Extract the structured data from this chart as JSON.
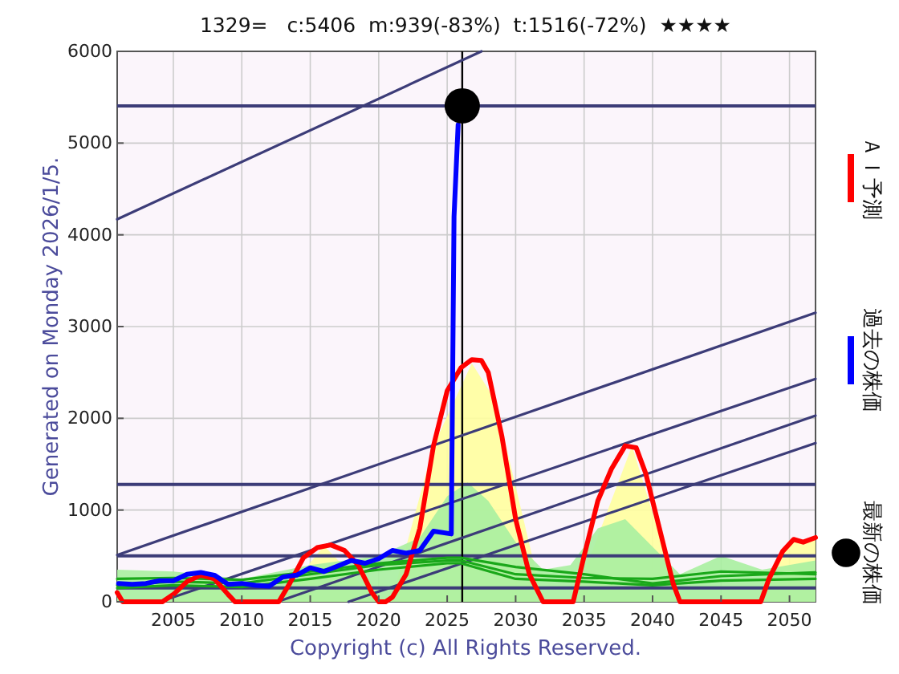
{
  "chart_data": {
    "type": "line",
    "title": "1329=   c:5406  m:939(-83%)  t:1516(-72%)  ★★★★",
    "ylabel": "Generated on Monday 2026/1/5.",
    "annotations": [
      "Copyright (c) All Rights Reserved."
    ],
    "xlim": [
      2000.9,
      2051.9
    ],
    "ylim": [
      0,
      6000
    ],
    "xticks": [
      2005,
      2010,
      2015,
      2020,
      2025,
      2030,
      2035,
      2040,
      2045,
      2050
    ],
    "yticks": [
      0,
      1000,
      2000,
      3000,
      4000,
      5000,
      6000
    ],
    "grid": true,
    "legend": "right",
    "ref_lines": [
      {
        "axis": "y",
        "value": 5406,
        "color": "#3c3c78"
      },
      {
        "axis": "y",
        "value": 1280,
        "color": "#3c3c78"
      },
      {
        "axis": "y",
        "value": 500,
        "color": "#3c3c78"
      },
      {
        "axis": "y",
        "value": 150,
        "color": "#3c3c78"
      },
      {
        "axis": "x",
        "value": 2026.1,
        "color": "#000000"
      }
    ],
    "series": [
      {
        "type": "area",
        "color": "#ffff9e",
        "x": [
          2000.9,
          2001.3,
          2004.2,
          2006,
          2007.5,
          2009.5,
          2012.7,
          2016,
          2020,
          2021,
          2024,
          2026.8,
          2028.5,
          2032,
          2034.2,
          2038.5,
          2042,
          2047.9,
          2050,
          2051.9
        ],
        "values": [
          100,
          0,
          0,
          200,
          280,
          0,
          0,
          610,
          0,
          50,
          1700,
          2600,
          2200,
          0,
          0,
          1700,
          0,
          0,
          650,
          700
        ]
      },
      {
        "type": "area",
        "color": "#a8f0a0",
        "x": [
          2000.9,
          2005,
          2010,
          2015,
          2020,
          2023,
          2025,
          2026.5,
          2028,
          2030,
          2032,
          2034,
          2036,
          2038,
          2040,
          2042,
          2045,
          2048,
          2051.9
        ],
        "values": [
          350,
          330,
          250,
          400,
          500,
          700,
          1150,
          1300,
          1100,
          650,
          350,
          400,
          800,
          900,
          600,
          300,
          500,
          350,
          450
        ]
      },
      {
        "color": "#3c3c78",
        "x": [
          2000.9,
          2027.5
        ],
        "values": [
          4170,
          6000
        ]
      },
      {
        "color": "#3c3c78",
        "x": [
          2000.9,
          2051.9
        ],
        "values": [
          510,
          3150
        ]
      },
      {
        "color": "#3c3c78",
        "x": [
          2004,
          2051.9
        ],
        "values": [
          0,
          2430
        ]
      },
      {
        "color": "#3c3c78",
        "x": [
          2012.6,
          2051.9
        ],
        "values": [
          0,
          2030
        ]
      },
      {
        "color": "#3c3c78",
        "x": [
          2017.8,
          2051.9
        ],
        "values": [
          0,
          1730
        ]
      },
      {
        "color": "#1aa81a",
        "x": [
          2000.9,
          2005,
          2010,
          2015,
          2020,
          2025,
          2026,
          2030,
          2035,
          2040,
          2045,
          2051.9
        ],
        "values": [
          250,
          260,
          240,
          330,
          420,
          480,
          480,
          380,
          300,
          200,
          280,
          320
        ]
      },
      {
        "color": "#1aa81a",
        "x": [
          2000.9,
          2005,
          2010,
          2015,
          2020,
          2025,
          2026,
          2030,
          2035,
          2040,
          2045,
          2051.9
        ],
        "values": [
          180,
          220,
          200,
          300,
          400,
          450,
          450,
          300,
          260,
          250,
          330,
          300
        ]
      },
      {
        "color": "#1aa81a",
        "x": [
          2000.9,
          2005,
          2010,
          2015,
          2020,
          2025,
          2026,
          2030,
          2035,
          2040,
          2045,
          2051.9
        ],
        "values": [
          150,
          180,
          160,
          250,
          350,
          420,
          420,
          250,
          220,
          180,
          230,
          250
        ]
      },
      {
        "name": "ＡＩ予測",
        "color": "#ff0000",
        "x": [
          2000.9,
          2001.3,
          2004.2,
          2005,
          2006,
          2007,
          2008,
          2009,
          2009.5,
          2012.7,
          2013.5,
          2014.5,
          2015.5,
          2016.5,
          2017.5,
          2018.5,
          2019.5,
          2020,
          2020.5,
          2021,
          2022,
          2023,
          2024,
          2025,
          2026,
          2026.8,
          2027.5,
          2028,
          2029,
          2030,
          2031,
          2032,
          2034.2,
          2035,
          2036,
          2037,
          2038,
          2038.8,
          2039.5,
          2040.5,
          2041.5,
          2042,
          2047.9,
          2048.5,
          2049.5,
          2050.3,
          2051,
          2051.9
        ],
        "values": [
          100,
          0,
          0,
          80,
          220,
          290,
          250,
          80,
          0,
          0,
          200,
          480,
          590,
          620,
          560,
          400,
          100,
          0,
          0,
          50,
          300,
          800,
          1700,
          2300,
          2550,
          2640,
          2630,
          2500,
          1800,
          900,
          300,
          0,
          0,
          500,
          1100,
          1450,
          1700,
          1680,
          1400,
          800,
          200,
          0,
          0,
          250,
          550,
          680,
          650,
          700
        ]
      },
      {
        "name": "過去の株価",
        "color": "#0000ff",
        "x": [
          2001,
          2002,
          2003,
          2004,
          2005,
          2006,
          2007,
          2008,
          2009,
          2010,
          2011,
          2012,
          2013,
          2014,
          2015,
          2016,
          2017,
          2018,
          2019,
          2020,
          2021,
          2022,
          2023,
          2024,
          2025.3,
          2025.5,
          2025.8
        ],
        "values": [
          200,
          190,
          200,
          230,
          230,
          300,
          320,
          290,
          190,
          200,
          180,
          170,
          270,
          290,
          370,
          330,
          390,
          450,
          420,
          470,
          560,
          530,
          560,
          770,
          740,
          4200,
          5200
        ]
      },
      {
        "type": "scatter",
        "name": "最新の株価",
        "color": "#000000",
        "marker": "circle",
        "x": [
          2026.1
        ],
        "values": [
          5406
        ]
      }
    ]
  }
}
